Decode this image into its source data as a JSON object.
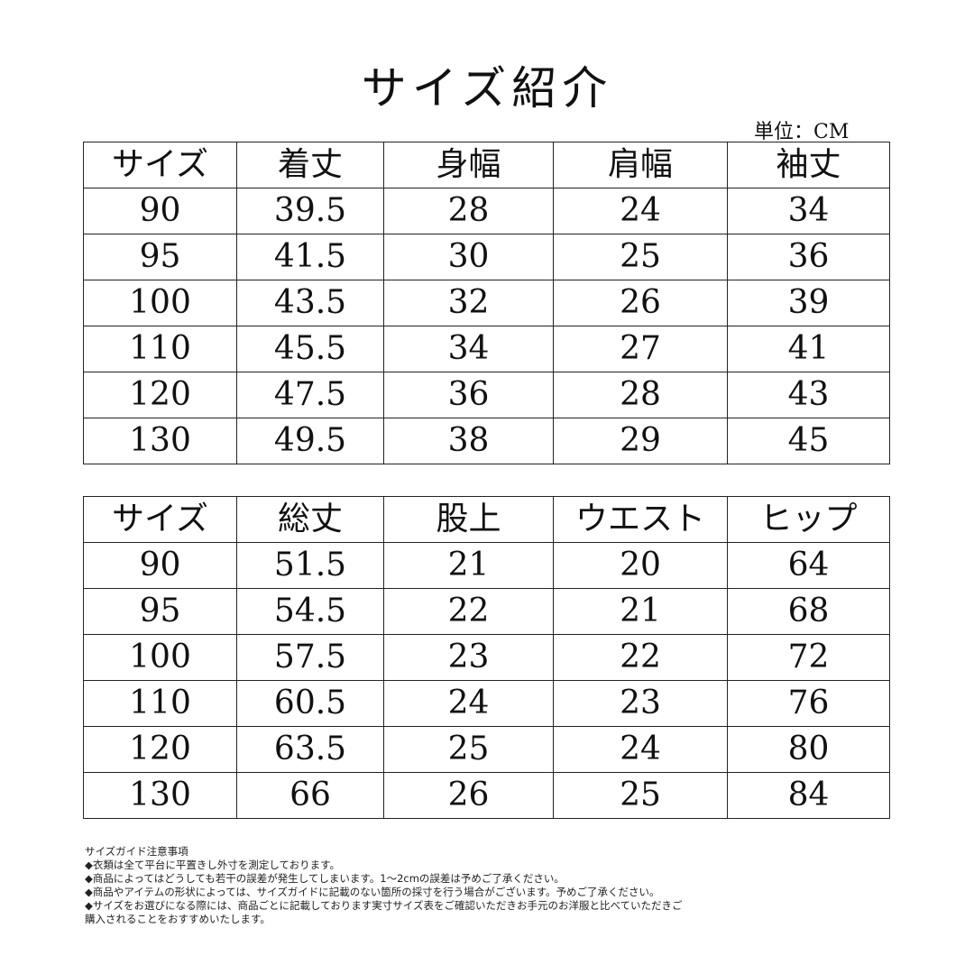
{
  "title": "サイズ紹介",
  "unit_label": "単位：CM",
  "table1": {
    "headers": [
      "サイズ",
      "着丈",
      "身幅",
      "肩幅",
      "袖丈"
    ],
    "rows": [
      [
        "90",
        "39.5",
        "28",
        "24",
        "34"
      ],
      [
        "95",
        "41.5",
        "30",
        "25",
        "36"
      ],
      [
        "100",
        "43.5",
        "32",
        "26",
        "39"
      ],
      [
        "110",
        "45.5",
        "34",
        "27",
        "41"
      ],
      [
        "120",
        "47.5",
        "36",
        "28",
        "43"
      ],
      [
        "130",
        "49.5",
        "38",
        "29",
        "45"
      ]
    ]
  },
  "table2": {
    "headers": [
      "サイズ",
      "総丈",
      "股上",
      "ウエスト",
      "ヒップ"
    ],
    "rows": [
      [
        "90",
        "51.5",
        "21",
        "20",
        "64"
      ],
      [
        "95",
        "54.5",
        "22",
        "21",
        "68"
      ],
      [
        "100",
        "57.5",
        "23",
        "22",
        "72"
      ],
      [
        "110",
        "60.5",
        "24",
        "23",
        "76"
      ],
      [
        "120",
        "63.5",
        "25",
        "24",
        "80"
      ],
      [
        "130",
        "66",
        "26",
        "25",
        "84"
      ]
    ]
  },
  "notes": [
    "サイズガイド注意事項",
    "◆衣類は全て平台に平置きし外寸を測定しております。",
    "◆商品によってはどうしても若干の誤差が発生してしまいます。1～2cmの誤差は予めご了承ください。",
    "◆商品やアイテムの形状によっては、サイズガイドに記載のない箇所の採寸を行う場合がございます。予めご了承ください。",
    "◆サイズをお選びになる際には、商品ごとに記載しております実寸サイズ表をご確認いただきお手元のお洋服と比べていただきご",
    "購入されることをおすすめいたします。"
  ]
}
